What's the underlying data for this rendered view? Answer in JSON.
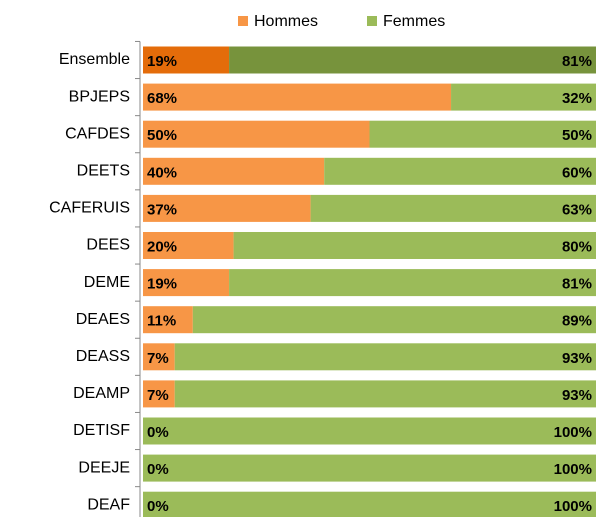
{
  "chart_data": {
    "type": "bar",
    "orientation": "horizontal",
    "stacked": true,
    "categories": [
      "Ensemble",
      "BPJEPS",
      "CAFDES",
      "DEETS",
      "CAFERUIS",
      "DEES",
      "DEME",
      "DEAES",
      "DEASS",
      "DEAMP",
      "DETISF",
      "DEEJE",
      "DEAF"
    ],
    "xlim": [
      0,
      100
    ],
    "legend": "top",
    "highlight_index": 0,
    "series": [
      {
        "name": "Hommes",
        "color": "#f79646",
        "highlight_color": "#e46c0a",
        "values": [
          19,
          68,
          50,
          40,
          37,
          20,
          19,
          11,
          7,
          7,
          0,
          0,
          0
        ],
        "value_labels": [
          "19%",
          "68%",
          "50%",
          "40%",
          "37%",
          "20%",
          "19%",
          "11%",
          "7%",
          "7%",
          "0%",
          "0%",
          "0%"
        ]
      },
      {
        "name": "Femmes",
        "color": "#9bbb59",
        "highlight_color": "#77933c",
        "values": [
          81,
          32,
          50,
          60,
          63,
          80,
          81,
          89,
          93,
          93,
          100,
          100,
          100
        ],
        "value_labels": [
          "81%",
          "32%",
          "50%",
          "60%",
          "63%",
          "80%",
          "81%",
          "89%",
          "93%",
          "93%",
          "100%",
          "100%",
          "100%"
        ]
      }
    ]
  }
}
